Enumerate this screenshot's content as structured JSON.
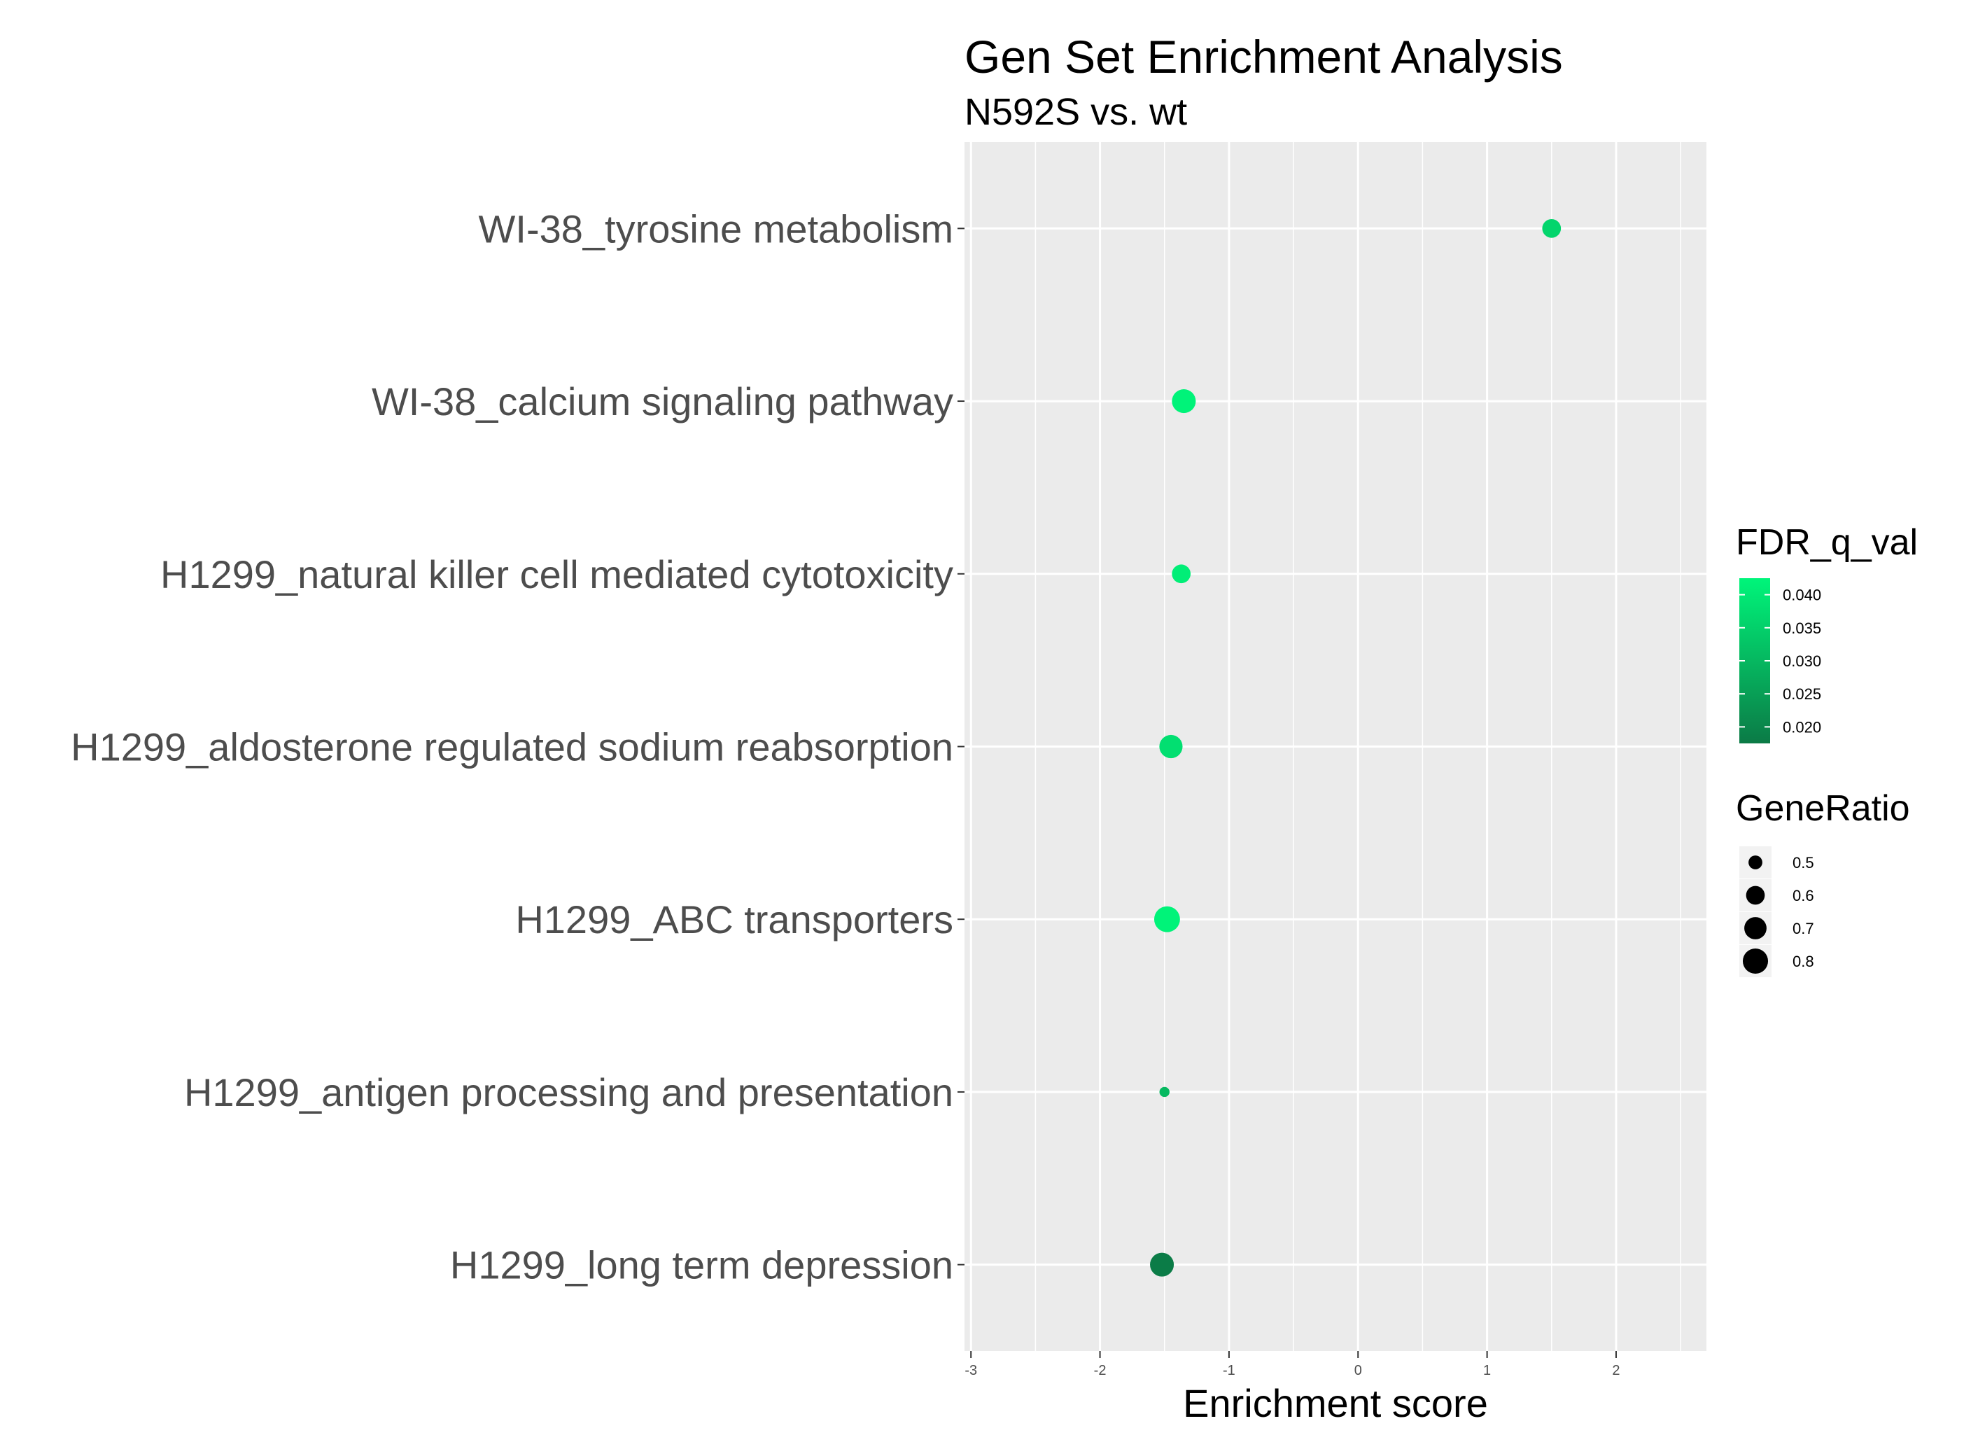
{
  "chart_data": {
    "type": "scatter",
    "title": "Gen Set Enrichment Analysis",
    "subtitle": "N592S vs. wt",
    "xlabel": "Enrichment score",
    "ylabel": "",
    "xlim": [
      -3.05,
      2.7
    ],
    "x_ticks": [
      -3,
      -2,
      -1,
      0,
      1,
      2
    ],
    "x_tick_labels": [
      "-3",
      "-2",
      "-1",
      "0",
      "1",
      "2"
    ],
    "grid": true,
    "legend_position": "right",
    "categories": [
      "WI-38_tyrosine metabolism",
      "WI-38_calcium signaling pathway",
      "H1299_natural killer cell mediated cytotoxicity",
      "H1299_aldosterone regulated sodium reabsorption",
      "H1299_ABC transporters",
      "H1299_antigen processing and presentation",
      "H1299_long term depression"
    ],
    "points": [
      {
        "category": "WI-38_tyrosine metabolism",
        "x": 1.5,
        "fdr_q_val": 0.036,
        "gene_ratio": 0.6
      },
      {
        "category": "WI-38_calcium signaling pathway",
        "x": -1.35,
        "fdr_q_val": 0.042,
        "gene_ratio": 0.75
      },
      {
        "category": "H1299_natural killer cell mediated cytotoxicity",
        "x": -1.37,
        "fdr_q_val": 0.041,
        "gene_ratio": 0.6
      },
      {
        "category": "H1299_aldosterone regulated sodium reabsorption",
        "x": -1.45,
        "fdr_q_val": 0.038,
        "gene_ratio": 0.73
      },
      {
        "category": "H1299_ABC transporters",
        "x": -1.48,
        "fdr_q_val": 0.042,
        "gene_ratio": 0.82
      },
      {
        "category": "H1299_antigen processing and presentation",
        "x": -1.5,
        "fdr_q_val": 0.03,
        "gene_ratio": 0.45
      },
      {
        "category": "H1299_long term depression",
        "x": -1.52,
        "fdr_q_val": 0.018,
        "gene_ratio": 0.75
      }
    ],
    "color_legend": {
      "title": "FDR_q_val",
      "ticks": [
        0.04,
        0.035,
        0.03,
        0.025,
        0.02
      ],
      "tick_labels": [
        "0.040",
        "0.035",
        "0.030",
        "0.025",
        "0.020"
      ],
      "range": [
        0.0175,
        0.0425
      ],
      "low_color": "#0b7a46",
      "high_color": "#00f57a"
    },
    "size_legend": {
      "title": "GeneRatio",
      "values": [
        0.5,
        0.6,
        0.7,
        0.8
      ],
      "labels": [
        "0.5",
        "0.6",
        "0.7",
        "0.8"
      ]
    },
    "panel_background": "#ebebeb",
    "grid_color": "#ffffff"
  }
}
